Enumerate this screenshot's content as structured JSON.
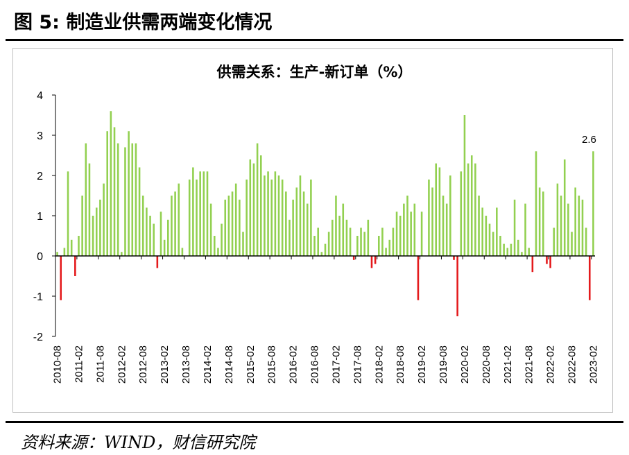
{
  "figure": {
    "title": "图 5:  制造业供需两端变化情况",
    "source": "资料来源：WIND，财信研究院"
  },
  "colors": {
    "positive": "#92d050",
    "negative": "#e41a1c",
    "axis": "#000000"
  },
  "chart_data": {
    "type": "bar",
    "title": "供需关系：生产-新订单（%）",
    "ylim": [
      -2,
      4
    ],
    "yticks": [
      -2,
      -1,
      0,
      1,
      2,
      3,
      4
    ],
    "xtick_labels": [
      "2010-08",
      "2011-02",
      "2011-08",
      "2012-02",
      "2012-08",
      "2013-02",
      "2013-08",
      "2014-02",
      "2014-08",
      "2015-02",
      "2015-08",
      "2016-02",
      "2016-08",
      "2017-02",
      "2017-08",
      "2018-02",
      "2018-08",
      "2019-02",
      "2019-08",
      "2020-02",
      "2020-08",
      "2021-02",
      "2021-08",
      "2022-02",
      "2022-08",
      "2023-02"
    ],
    "start": "2010-08",
    "end": "2023-02",
    "values": [
      0.1,
      -1.1,
      0.2,
      2.1,
      0.4,
      -0.5,
      0.5,
      1.5,
      2.8,
      2.3,
      1.0,
      1.2,
      1.4,
      1.8,
      3.1,
      3.6,
      3.2,
      2.8,
      0.1,
      2.7,
      3.1,
      2.8,
      2.8,
      2.2,
      1.5,
      1.2,
      1.0,
      0.8,
      -0.3,
      1.1,
      0.4,
      0.9,
      1.5,
      1.6,
      1.8,
      0.2,
      0.0,
      1.9,
      2.2,
      1.9,
      2.1,
      2.1,
      2.1,
      1.3,
      0.5,
      0.2,
      0.8,
      1.4,
      1.5,
      1.6,
      1.8,
      1.4,
      0.6,
      1.9,
      2.4,
      2.3,
      2.8,
      2.5,
      2.0,
      2.1,
      1.9,
      2.1,
      2.0,
      1.9,
      1.6,
      0.9,
      1.4,
      1.7,
      2.0,
      1.6,
      1.3,
      1.9,
      0.5,
      0.7,
      0.1,
      0.3,
      0.6,
      0.9,
      1.5,
      1.0,
      1.3,
      0.9,
      0.7,
      -0.1,
      0.5,
      0.7,
      0.6,
      0.9,
      -0.3,
      -0.2,
      0.5,
      0.7,
      0.2,
      0.4,
      0.7,
      1.1,
      1.0,
      1.3,
      1.5,
      1.1,
      1.3,
      -1.1,
      1.1,
      0.0,
      1.9,
      1.7,
      2.3,
      2.2,
      1.5,
      1.3,
      2.0,
      -0.1,
      -1.5,
      2.1,
      3.5,
      2.3,
      2.5,
      2.3,
      1.5,
      1.2,
      1.0,
      0.8,
      0.6,
      1.2,
      0.5,
      0.3,
      0.2,
      0.3,
      1.4,
      0.4,
      0.1,
      1.3,
      0.2,
      -0.4,
      2.6,
      1.7,
      1.6,
      -0.2,
      -0.3,
      0.7,
      1.8,
      1.5,
      2.4,
      1.3,
      0.6,
      1.7,
      1.5,
      1.4,
      0.7,
      -1.1,
      2.6
    ],
    "annotations": [
      {
        "label": "2.6"
      }
    ]
  }
}
